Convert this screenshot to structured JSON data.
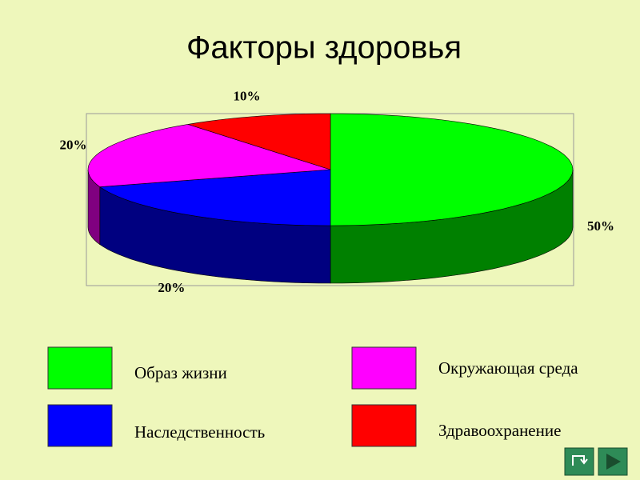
{
  "chart_data": {
    "type": "pie",
    "title": "Факторы здоровья",
    "categories": [
      "Образ жизни",
      "Наследственность",
      "Окружающая среда",
      "Здравоохранение"
    ],
    "values": [
      50,
      20,
      20,
      10
    ],
    "value_labels": [
      "50%",
      "20%",
      "20%",
      "10%"
    ],
    "colors": [
      "#00ff00",
      "#0000ff",
      "#ff00ff",
      "#ff0000"
    ],
    "side_colors": [
      "#008000",
      "#000080",
      "#800080",
      "#800000"
    ]
  }
}
